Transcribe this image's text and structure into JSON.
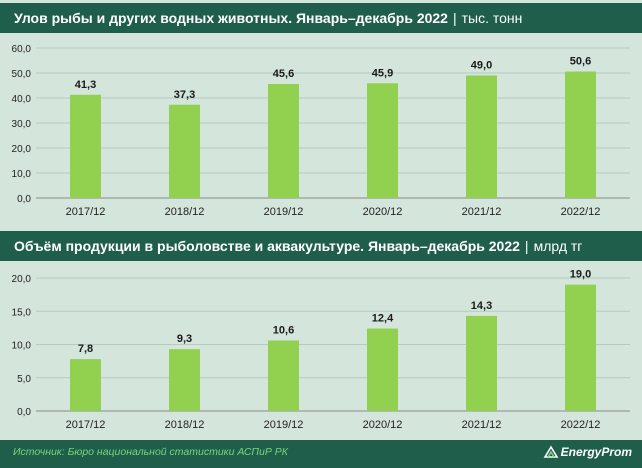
{
  "colors": {
    "bar": "#92d050",
    "header": "#1f5e4b",
    "background": "#d4e5dc",
    "source": "#7fd27a"
  },
  "chart1_header": {
    "title": "Улов рыбы и других водных животных. Январь–декабрь 2022",
    "separator": "|",
    "unit": "тыс. тонн"
  },
  "chart2_header": {
    "title": "Объём продукции в рыболовстве и аквакультуре. Январь–декабрь 2022",
    "separator": "|",
    "unit": "млрд тг"
  },
  "chart_data": [
    {
      "type": "bar",
      "title": "Улов рыбы и других водных животных. Январь–декабрь 2022",
      "unit": "тыс. тонн",
      "categories": [
        "2017/12",
        "2018/12",
        "2019/12",
        "2020/12",
        "2021/12",
        "2022/12"
      ],
      "values": [
        41.3,
        37.3,
        45.6,
        45.9,
        49.0,
        50.6
      ],
      "value_labels": [
        "41,3",
        "37,3",
        "45,6",
        "45,9",
        "49,0",
        "50,6"
      ],
      "yticks": [
        "0,0",
        "10,0",
        "20,0",
        "30,0",
        "40,0",
        "50,0",
        "60,0"
      ],
      "ylim": [
        0,
        60
      ],
      "grid": true
    },
    {
      "type": "bar",
      "title": "Объём продукции в рыболовстве и аквакультуре. Январь–декабрь 2022",
      "unit": "млрд тг",
      "categories": [
        "2017/12",
        "2018/12",
        "2019/12",
        "2020/12",
        "2021/12",
        "2022/12"
      ],
      "values": [
        7.8,
        9.3,
        10.6,
        12.4,
        14.3,
        19.0
      ],
      "value_labels": [
        "7,8",
        "9,3",
        "10,6",
        "12,4",
        "14,3",
        "19,0"
      ],
      "yticks": [
        "0,0",
        "5,0",
        "10,0",
        "15,0",
        "20,0"
      ],
      "ylim": [
        0,
        20
      ],
      "grid": true
    }
  ],
  "footer": {
    "source": "Источник: Бюро национальной статистики АСПиР РК",
    "logo": "EnergyProm"
  }
}
